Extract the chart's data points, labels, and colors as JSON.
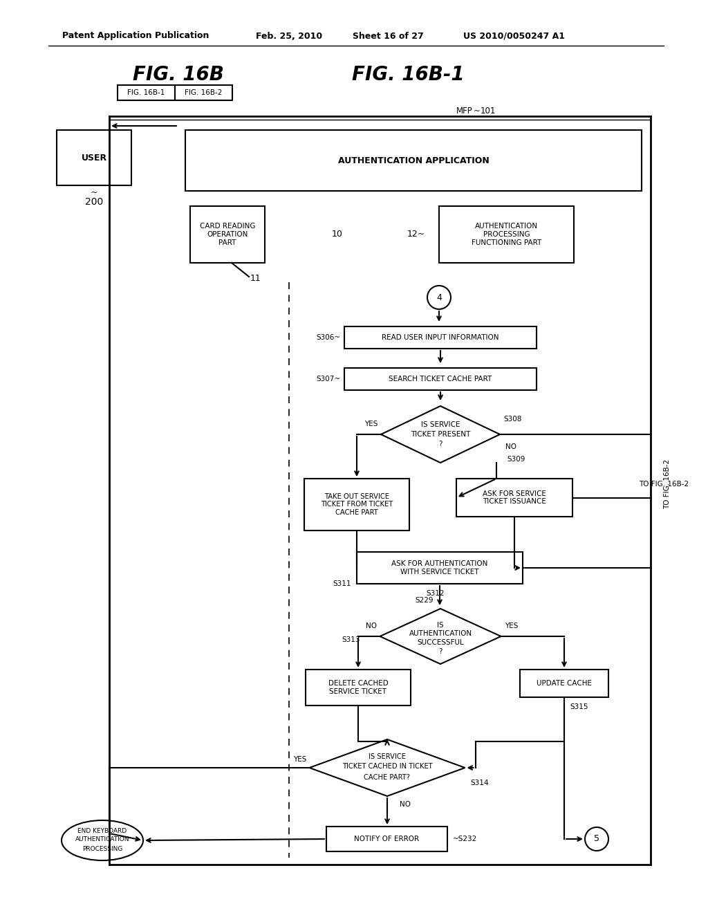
{
  "bg_color": "#ffffff",
  "header_text": "Patent Application Publication",
  "header_date": "Feb. 25, 2010",
  "header_sheet": "Sheet 16 of 27",
  "header_patent": "US 2010/0050247 A1",
  "fig_title_left": "FIG. 16B",
  "fig_title_right": "FIG. 16B-1",
  "tab_left": "FIG. 16B-1",
  "tab_right": "FIG. 16B-2",
  "mfp_label": "MFP",
  "mfp_num": "101",
  "user_label": "USER",
  "user_num": "200",
  "auth_app_label": "AUTHENTICATION APPLICATION",
  "card_reading_label": "CARD READING\nOPERATION\nPART",
  "num_10": "10",
  "num_11": "11",
  "num_12": "12~",
  "auth_proc_label": "AUTHENTICATION\nPROCESSING\nFUNCTIONING PART",
  "circle4_label": "4",
  "s306_label": "S306",
  "s306_text": "READ USER INPUT INFORMATION",
  "s307_label": "S307",
  "s307_text": "SEARCH TICKET CACHE PART",
  "s308_label": "S308",
  "s309_label": "S309",
  "s309_text": "ASK FOR SERVICE\nTICKET ISSUANCE",
  "take_out_text": "TAKE OUT SERVICE\nTICKET FROM TICKET\nCACHE PART",
  "s311_label": "S311",
  "ask_auth_text": "ASK FOR AUTHENTICATION\nWITH SERVICE TICKET",
  "s312_label": "S312",
  "s229_label": "S229",
  "s313_label": "S313",
  "s313_text": "DELETE CACHED\nSERVICE TICKET",
  "update_cache_text": "UPDATE CACHE",
  "s315_label": "S315",
  "s314_label": "S314",
  "notify_error_text": "NOTIFY OF ERROR",
  "s232_label": "S232",
  "end_keyboard_text": "END KEYBOARD\nAUTHENTICATION\nPROCESSING",
  "circle5_label": "5",
  "to_fig_label": "TO FIG. 16B-2",
  "yes_label": "YES",
  "no_label": "NO",
  "is_service_text_1": "IS SERVICE",
  "is_service_text_2": "TICKET PRESENT",
  "is_service_text_3": "?",
  "is_auth_text_1": "IS",
  "is_auth_text_2": "AUTHENTICATION",
  "is_auth_text_3": "SUCCESSFUL",
  "is_auth_text_4": "?",
  "is_cached_text_1": "IS SERVICE",
  "is_cached_text_2": "TICKET CACHED IN TICKET",
  "is_cached_text_3": "CACHE PART?"
}
